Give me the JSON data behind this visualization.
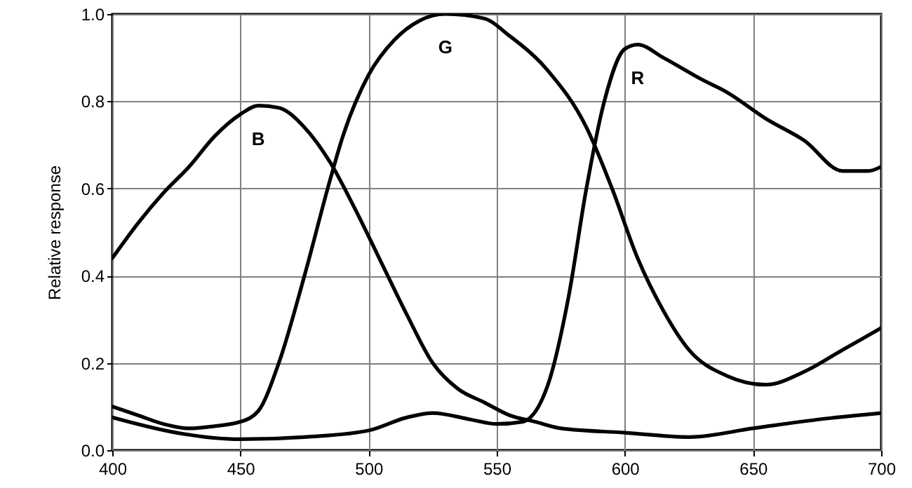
{
  "chart_data": {
    "type": "line",
    "ylabel": "Relative response",
    "x": [
      400,
      410,
      420,
      430,
      440,
      450,
      457,
      465,
      475,
      485,
      495,
      505,
      515,
      525,
      535,
      545,
      555,
      565,
      575,
      600,
      625,
      650,
      675,
      700
    ],
    "series": [
      {
        "name": "B",
        "color": "#000000",
        "values": [
          0.44,
          0.52,
          0.59,
          0.65,
          0.72,
          0.77,
          0.79,
          0.785,
          0.74,
          0.66,
          0.55,
          0.43,
          0.31,
          0.2,
          0.14,
          0.11,
          0.08,
          0.065,
          0.05,
          0.04,
          0.03,
          0.05,
          0.07,
          0.085
        ]
      },
      {
        "name": "G",
        "color": "#000000",
        "x": [
          400,
          410,
          420,
          430,
          440,
          450,
          457,
          465,
          475,
          485,
          490,
          500,
          510,
          520,
          530,
          545,
          555,
          570,
          585,
          595,
          605,
          615,
          625,
          640,
          655,
          670,
          685,
          700
        ],
        "values": [
          0.1,
          0.08,
          0.06,
          0.05,
          0.055,
          0.065,
          0.09,
          0.2,
          0.4,
          0.62,
          0.72,
          0.86,
          0.94,
          0.985,
          1.0,
          0.99,
          0.95,
          0.87,
          0.74,
          0.6,
          0.44,
          0.32,
          0.23,
          0.17,
          0.15,
          0.18,
          0.23,
          0.28
        ]
      },
      {
        "name": "R",
        "color": "#000000",
        "x": [
          400,
          425,
          450,
          475,
          500,
          515,
          525,
          540,
          550,
          560,
          570,
          578,
          585,
          592,
          600,
          605,
          615,
          630,
          640,
          655,
          670,
          685,
          695,
          700
        ],
        "values": [
          0.075,
          0.04,
          0.025,
          0.03,
          0.045,
          0.075,
          0.085,
          0.07,
          0.06,
          0.065,
          0.15,
          0.35,
          0.6,
          0.8,
          0.92,
          0.93,
          0.9,
          0.85,
          0.82,
          0.76,
          0.71,
          0.64,
          0.64,
          0.65
        ]
      }
    ],
    "xlim": [
      400,
      700
    ],
    "xticks": [
      400,
      450,
      500,
      550,
      600,
      650,
      700
    ],
    "ylim": [
      0,
      1
    ],
    "yticks": [
      {
        "value": 0,
        "label": "0.0"
      },
      0.2,
      0.4,
      0.6,
      0.8,
      {
        "value": 1,
        "label": "1.0"
      }
    ],
    "grid": true,
    "marker": "none",
    "line_style": "solid"
  }
}
